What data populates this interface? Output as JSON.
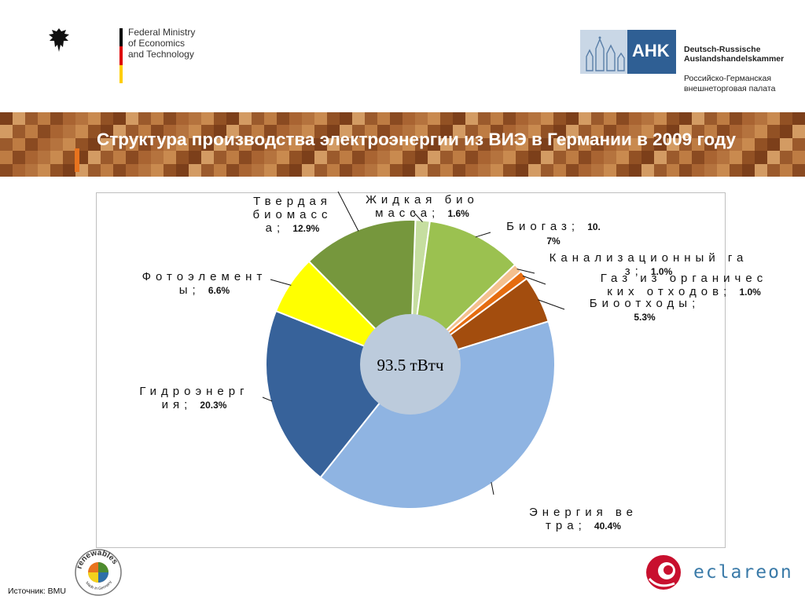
{
  "header": {
    "ministry_name": "Federal Ministry\nof Economics\nand Technology",
    "ahk_mark": "AHK",
    "ahk_name_de": "Deutsch-Russische\nAuslandshandelskammer",
    "ahk_name_ru": "Российско-Германская\nвнешнеторговая палата"
  },
  "title": "Структура производства электроэнергии из ВИЭ в Германии в 2009 году",
  "footer": {
    "source": "Источник: BMU",
    "renewables_logo_text": "renewables",
    "renewables_logo_subtext": "Made in Germany",
    "eclareon_name": "eclareon"
  },
  "colors": {
    "banner_accent": "#e8731e",
    "center_circle": "#bccbdc"
  },
  "chart_data": {
    "type": "pie",
    "center_text": "93.5 тВтч",
    "slices": [
      {
        "label": "Жидкая биомасса",
        "value": 1.6,
        "pct_text": "1.6%",
        "color": "#c6dea0"
      },
      {
        "label": "Биогаз",
        "value": 10.7,
        "pct_text": "10.7%",
        "color": "#9bc150"
      },
      {
        "label": "Канализационный газ",
        "value": 1.0,
        "pct_text": "1.0%",
        "color": "#f4c08e"
      },
      {
        "label": "Газ из органических отходов",
        "value": 1.0,
        "pct_text": "1.0%",
        "color": "#e56c10"
      },
      {
        "label": "Биоотходы",
        "value": 5.3,
        "pct_text": "5.3%",
        "color": "#a34d0e"
      },
      {
        "label": "Энергия ветра",
        "value": 40.4,
        "pct_text": "40.4%",
        "color": "#8fb4e2"
      },
      {
        "label": "Гидроэнергия",
        "value": 20.3,
        "pct_text": "20.3%",
        "color": "#37629a"
      },
      {
        "label": "Фотоэлементы",
        "value": 6.6,
        "pct_text": "6.6%",
        "color": "#ffff00"
      },
      {
        "label": "Твердая биомасса",
        "value": 12.9,
        "pct_text": "12.9%",
        "color": "#76973d"
      }
    ]
  }
}
